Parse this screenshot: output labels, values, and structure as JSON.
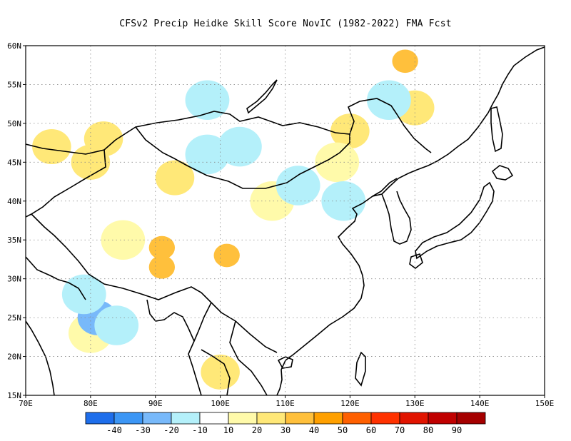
{
  "title": "CFSv2 Precip Heidke Skill Score NovIC (1982-2022) FMA Fcst",
  "map": {
    "lon_range": [
      70,
      150
    ],
    "lat_range": [
      15,
      60
    ],
    "lon_labels": [
      "70E",
      "80E",
      "90E",
      "100E",
      "110E",
      "120E",
      "130E",
      "140E",
      "150E"
    ],
    "lat_labels": [
      "15N",
      "20N",
      "25N",
      "30N",
      "35N",
      "40N",
      "45N",
      "50N",
      "55N",
      "60N"
    ],
    "grid": "dotted"
  },
  "colorbar": {
    "colors": [
      "#1e6eeb",
      "#3c96f5",
      "#78b9fa",
      "#b4f0fa",
      "#ffffff",
      "#fffaaa",
      "#ffe878",
      "#ffc03c",
      "#ffa000",
      "#ff6000",
      "#ff3200",
      "#e11400",
      "#c00000",
      "#a50000"
    ],
    "labels": [
      "-40",
      "-30",
      "-20",
      "-10",
      "10",
      "20",
      "30",
      "40",
      "50",
      "60",
      "70",
      "80",
      "90"
    ]
  },
  "chart_data": {
    "type": "heatmap",
    "title": "CFSv2 Precip Heidke Skill Score NovIC (1982-2022) FMA Fcst",
    "x_range": [
      70,
      150
    ],
    "y_range": [
      15,
      60
    ],
    "levels": [
      -40,
      -30,
      -20,
      -10,
      10,
      20,
      30,
      40,
      50,
      60,
      70,
      80,
      90
    ],
    "patches": [
      {
        "lon": 91,
        "lat": 34,
        "value": 35
      },
      {
        "lon": 91,
        "lat": 31.5,
        "value": 30
      },
      {
        "lon": 101,
        "lat": 33,
        "value": 30
      },
      {
        "lon": 128.5,
        "lat": 58,
        "value": 30
      },
      {
        "lon": 74,
        "lat": 47,
        "value": 25
      },
      {
        "lon": 80,
        "lat": 45,
        "value": 25
      },
      {
        "lon": 82,
        "lat": 48,
        "value": 20
      },
      {
        "lon": 93,
        "lat": 43,
        "value": 20
      },
      {
        "lon": 100,
        "lat": 18,
        "value": 20
      },
      {
        "lon": 120,
        "lat": 49,
        "value": 20
      },
      {
        "lon": 130,
        "lat": 52,
        "value": 20
      },
      {
        "lon": 80,
        "lat": 23,
        "value": 15
      },
      {
        "lon": 108,
        "lat": 40,
        "value": 15
      },
      {
        "lon": 85,
        "lat": 35,
        "value": 15
      },
      {
        "lon": 118,
        "lat": 45,
        "value": 15
      },
      {
        "lon": 81,
        "lat": 25,
        "value": -25
      },
      {
        "lon": 84,
        "lat": 24,
        "value": -15
      },
      {
        "lon": 103,
        "lat": 47,
        "value": -15
      },
      {
        "lon": 98,
        "lat": 46,
        "value": -15
      },
      {
        "lon": 98,
        "lat": 53,
        "value": -15
      },
      {
        "lon": 79,
        "lat": 28,
        "value": -15
      },
      {
        "lon": 112,
        "lat": 42,
        "value": -15
      },
      {
        "lon": 119,
        "lat": 40,
        "value": -15
      },
      {
        "lon": 126,
        "lat": 53,
        "value": -15
      }
    ]
  }
}
